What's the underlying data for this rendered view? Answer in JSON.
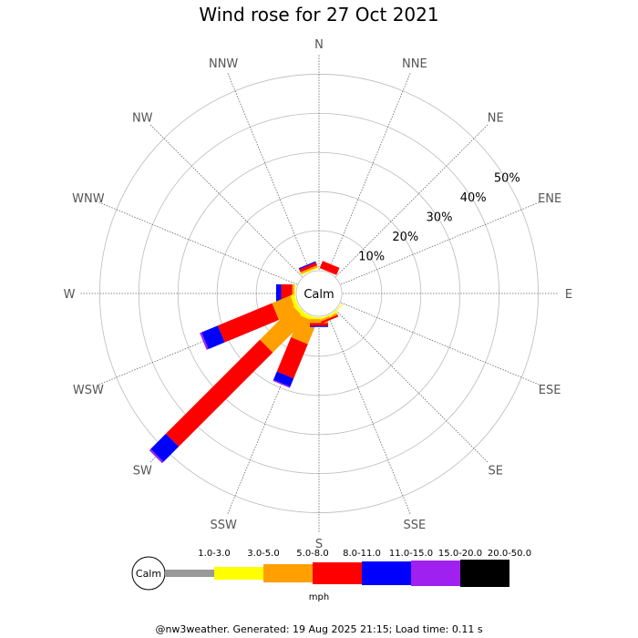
{
  "chart_data": {
    "type": "windrose",
    "title": "Wind rose for 27 Oct 2021",
    "directions": [
      "N",
      "NNE",
      "NE",
      "ENE",
      "E",
      "ESE",
      "SE",
      "SSE",
      "S",
      "SSW",
      "SW",
      "WSW",
      "W",
      "WNW",
      "NW",
      "NNW"
    ],
    "radial_ticks": [
      "10%",
      "20%",
      "30%",
      "40%",
      "50%"
    ],
    "radial_values": [
      10,
      20,
      30,
      40,
      50
    ],
    "rmax": 55,
    "calm_label": "Calm",
    "unit": "mph",
    "speed_bins": [
      {
        "label": "1.0-3.0",
        "color": "#999999"
      },
      {
        "label": "3.0-5.0",
        "color": "#ffff00"
      },
      {
        "label": "5.0-8.0",
        "color": "#ffa000"
      },
      {
        "label": "8.0-11.0",
        "color": "#ff0000"
      },
      {
        "label": "11.0-15.0",
        "color": "#0000ff"
      },
      {
        "label": "15.0-20.0",
        "color": "#a020f0"
      },
      {
        "label": "20.0-50.0",
        "color": "#000000"
      }
    ],
    "series": [
      {
        "direction": "NNE",
        "segments": [
          0,
          0,
          0,
          2,
          0,
          0,
          0
        ]
      },
      {
        "direction": "NNW",
        "segments": [
          0,
          0.3,
          0.5,
          0.8,
          0.3,
          0,
          0
        ]
      },
      {
        "direction": "W",
        "segments": [
          0,
          0.3,
          0.5,
          2.8,
          1.3,
          0,
          0
        ]
      },
      {
        "direction": "WSW",
        "segments": [
          0,
          1.0,
          5.0,
          15.0,
          4.5,
          0.5,
          0
        ]
      },
      {
        "direction": "SW",
        "segments": [
          0,
          1.0,
          12.0,
          34.0,
          5.5,
          0.5,
          0
        ]
      },
      {
        "direction": "SSW",
        "segments": [
          0,
          1.0,
          6.0,
          9.5,
          2.3,
          0.3,
          0
        ]
      },
      {
        "direction": "S",
        "segments": [
          0,
          0.5,
          1.0,
          0.7,
          0.3,
          0,
          0
        ]
      },
      {
        "direction": "SSE",
        "segments": [
          0,
          0.3,
          0.5,
          0.5,
          0,
          0,
          0
        ]
      },
      {
        "direction": "SE",
        "segments": [
          0,
          0.3,
          0,
          0,
          0,
          0,
          0
        ]
      }
    ]
  },
  "footer": "@nw3weather. Generated: 19 Aug 2025 21:15; Load time: 0.11 s"
}
